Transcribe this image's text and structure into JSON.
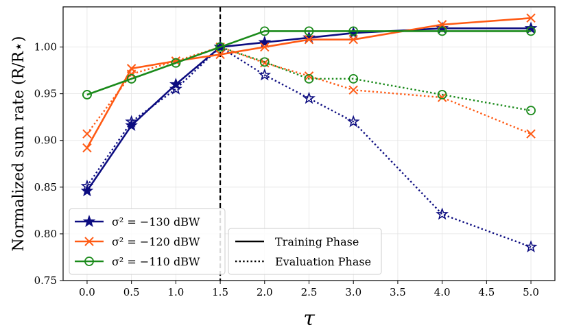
{
  "chart_data": {
    "type": "line",
    "xlabel": "τ",
    "ylabel": "Normalized sum rate (R/R⋆)",
    "xlim": [
      -0.27,
      5.27
    ],
    "ylim": [
      0.75,
      1.043
    ],
    "xticks": [
      "0.0",
      "0.5",
      "1.0",
      "1.5",
      "2.0",
      "2.5",
      "3.0",
      "3.5",
      "4.0",
      "4.5",
      "5.0"
    ],
    "yticks": [
      "0.75",
      "0.80",
      "0.85",
      "0.90",
      "0.95",
      "1.00"
    ],
    "grid": true,
    "vline_x": 1.5,
    "series": [
      {
        "name": "σ² = −130 dBW",
        "phase": "Training Phase",
        "color": "#0c0c80",
        "marker": "star",
        "linestyle": "solid",
        "x": [
          0.0,
          0.5,
          1.0,
          1.5,
          2.0,
          2.5,
          3.0,
          4.0,
          5.0
        ],
        "y": [
          0.846,
          0.916,
          0.96,
          1.0,
          1.005,
          1.01,
          1.015,
          1.02,
          1.02
        ]
      },
      {
        "name": "σ² = −120 dBW",
        "phase": "Training Phase",
        "color": "#ff5a14",
        "marker": "x",
        "linestyle": "solid",
        "x": [
          0.0,
          0.5,
          1.0,
          1.5,
          2.0,
          2.5,
          3.0,
          4.0,
          5.0
        ],
        "y": [
          0.892,
          0.977,
          0.985,
          0.992,
          1.0,
          1.008,
          1.008,
          1.024,
          1.031
        ]
      },
      {
        "name": "σ² = −110 dBW",
        "phase": "Training Phase",
        "color": "#1a8a1a",
        "marker": "circle",
        "linestyle": "solid",
        "x": [
          0.0,
          0.5,
          1.0,
          1.5,
          2.0,
          2.5,
          3.0,
          4.0,
          5.0
        ],
        "y": [
          0.949,
          0.966,
          0.983,
          1.0,
          1.017,
          1.017,
          1.017,
          1.017,
          1.017
        ]
      },
      {
        "name": "σ² = −130 dBW",
        "phase": "Evaluation Phase",
        "color": "#0c0c80",
        "marker": "star-open",
        "linestyle": "dotted",
        "x": [
          0.0,
          0.5,
          1.0,
          1.5,
          2.0,
          2.5,
          3.0,
          4.0,
          5.0
        ],
        "y": [
          0.851,
          0.92,
          0.955,
          1.0,
          0.97,
          0.945,
          0.92,
          0.821,
          0.786
        ]
      },
      {
        "name": "σ² = −120 dBW",
        "phase": "Evaluation Phase",
        "color": "#ff5a14",
        "marker": "x",
        "linestyle": "dotted",
        "x": [
          0.0,
          0.5,
          1.0,
          1.5,
          2.0,
          2.5,
          3.0,
          4.0,
          5.0
        ],
        "y": [
          0.907,
          0.971,
          0.985,
          1.0,
          0.983,
          0.969,
          0.954,
          0.946,
          0.907
        ]
      },
      {
        "name": "σ² = −110 dBW",
        "phase": "Evaluation Phase",
        "color": "#1a8a1a",
        "marker": "circle",
        "linestyle": "dotted",
        "x": [
          0.0,
          0.5,
          1.0,
          1.5,
          2.0,
          2.5,
          3.0,
          4.0,
          5.0
        ],
        "y": [
          0.949,
          0.966,
          0.983,
          1.0,
          0.984,
          0.966,
          0.966,
          0.949,
          0.932
        ]
      }
    ],
    "legend_noise": [
      {
        "label": "σ² = −130 dBW",
        "color": "#0c0c80",
        "marker": "star"
      },
      {
        "label": "σ² = −120 dBW",
        "color": "#ff5a14",
        "marker": "x"
      },
      {
        "label": "σ² = −110 dBW",
        "color": "#1a8a1a",
        "marker": "circle"
      }
    ],
    "legend_noise_placement": "lower-left",
    "legend_phase": [
      {
        "label": "Training Phase",
        "linestyle": "solid"
      },
      {
        "label": "Evaluation Phase",
        "linestyle": "dotted"
      }
    ],
    "legend_phase_placement": "lower-center-left"
  }
}
